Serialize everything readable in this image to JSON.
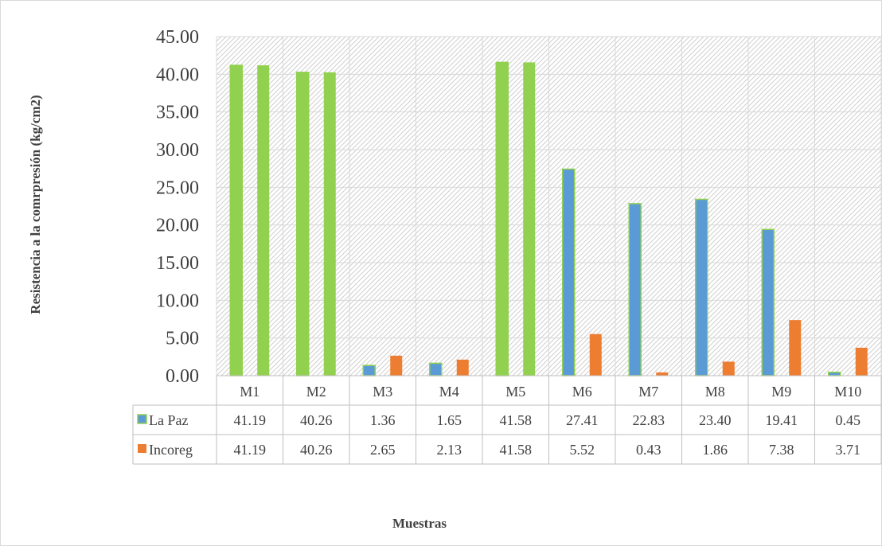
{
  "chart_data": {
    "type": "bar",
    "title": "",
    "ylabel": "Resistencia a la comrpresión (kg/cm2)",
    "xlabel": "Muestras",
    "categories": [
      "M1",
      "M2",
      "M3",
      "M4",
      "M5",
      "M6",
      "M7",
      "M8",
      "M9",
      "M10"
    ],
    "series": [
      {
        "name": "La Paz",
        "values": [
          41.19,
          40.26,
          1.36,
          1.65,
          41.58,
          27.41,
          22.83,
          23.4,
          19.41,
          0.45
        ],
        "labels": [
          "41.19",
          "40.26",
          "1.36",
          "1.65",
          "41.58",
          "27.41",
          "22.83",
          "23.40",
          "19.41",
          "0.45"
        ],
        "color": "#5b9bd5"
      },
      {
        "name": "Incoreg",
        "values": [
          41.19,
          40.26,
          2.65,
          2.13,
          41.58,
          5.52,
          0.43,
          1.86,
          7.38,
          3.71
        ],
        "labels": [
          "41.19",
          "40.26",
          "2.65",
          "2.13",
          "41.58",
          "5.52",
          "0.43",
          "1.86",
          "7.38",
          "3.71"
        ],
        "color": "#ed7d31"
      }
    ],
    "highlight_color": "#92d050",
    "highlighted_categories": [
      "M1",
      "M2",
      "M5"
    ],
    "ylim": [
      0,
      45
    ],
    "yticks": [
      "0.00",
      "5.00",
      "10.00",
      "15.00",
      "20.00",
      "25.00",
      "30.00",
      "35.00",
      "40.00",
      "45.00"
    ],
    "grid": true,
    "legend": "data-table"
  }
}
